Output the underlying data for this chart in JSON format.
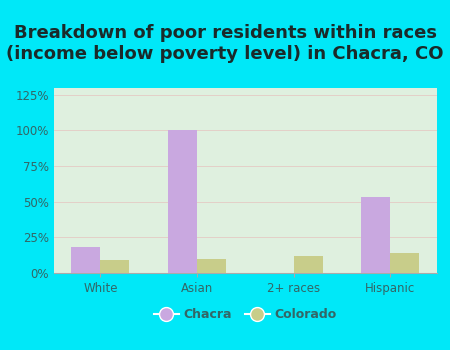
{
  "title": "Breakdown of poor residents within races\n(income below poverty level) in Chacra, CO",
  "categories": [
    "White",
    "Asian",
    "2+ races",
    "Hispanic"
  ],
  "chacra_values": [
    18,
    100,
    0,
    53
  ],
  "colorado_values": [
    9,
    10,
    12,
    14
  ],
  "chacra_color": "#c9a8e0",
  "colorado_color": "#c8cd8a",
  "background_outer": "#00e8f8",
  "background_inner_top": "#e8f5e8",
  "background_inner_bottom": "#c8e8c0",
  "ylim": [
    0,
    130
  ],
  "yticks": [
    0,
    25,
    50,
    75,
    100,
    125
  ],
  "ytick_labels": [
    "0%",
    "25%",
    "50%",
    "75%",
    "100%",
    "125%"
  ],
  "title_fontsize": 13,
  "title_color": "#1a2a2a",
  "tick_label_color": "#336666",
  "bar_width": 0.3,
  "legend_labels": [
    "Chacra",
    "Colorado"
  ]
}
